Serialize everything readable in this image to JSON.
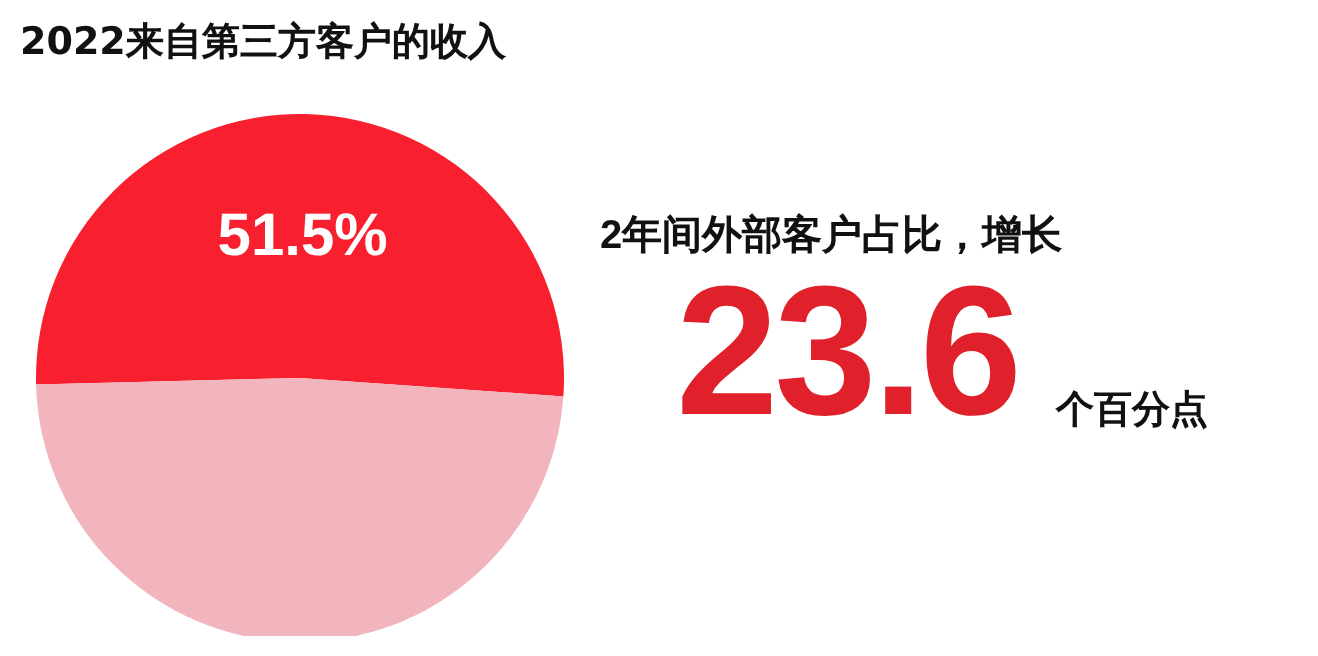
{
  "chart_data": {
    "type": "pie",
    "title": "2022来自第三方客户的收入",
    "categories": [
      null,
      null
    ],
    "values": [
      51.5,
      48.5
    ],
    "colors": [
      "#f8202e",
      "#f2b5be"
    ],
    "value_labels": [
      "51.5%",
      null
    ],
    "annotations": [
      "2年间外部客户占比，增长",
      "23.6",
      "个百分点"
    ]
  }
}
